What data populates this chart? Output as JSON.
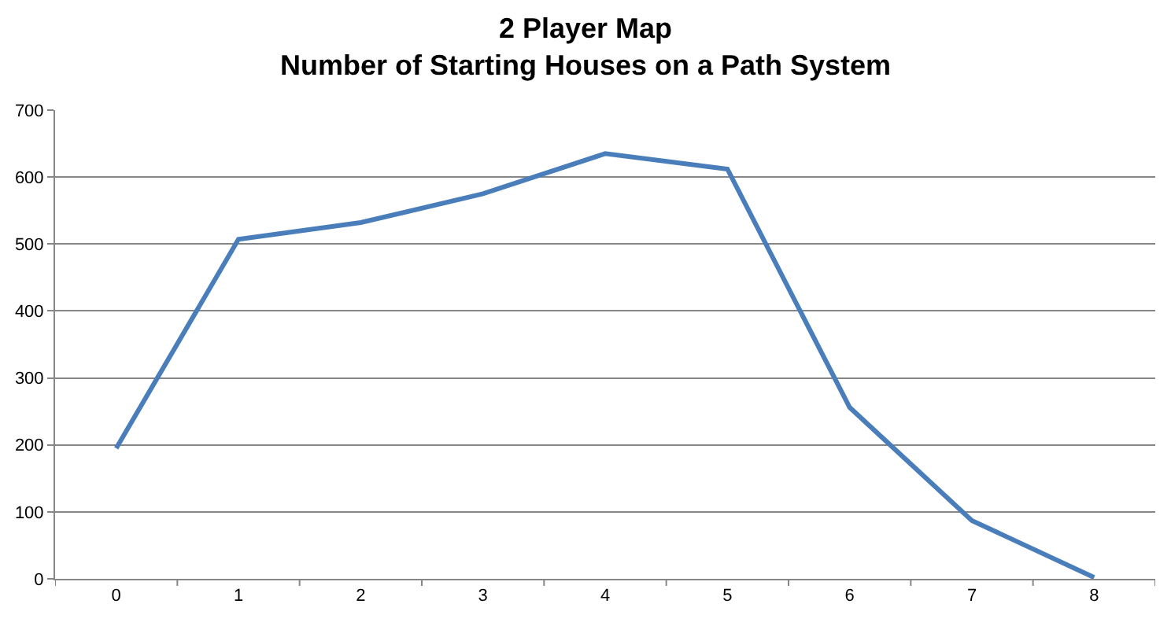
{
  "chart_data": {
    "type": "line",
    "title": "2 Player Map\nNumber of Starting Houses on a Path System",
    "categories": [
      "0",
      "1",
      "2",
      "3",
      "4",
      "5",
      "6",
      "7",
      "8"
    ],
    "series": [
      {
        "color": "#4a7ebb",
        "values": [
          195,
          507,
          532,
          575,
          635,
          612,
          256,
          87,
          2
        ]
      }
    ],
    "ylim": [
      0,
      700
    ],
    "yticks": [
      0,
      100,
      200,
      300,
      400,
      500,
      600,
      700
    ],
    "grid": "y",
    "marker": "none",
    "line_style": "solid"
  }
}
